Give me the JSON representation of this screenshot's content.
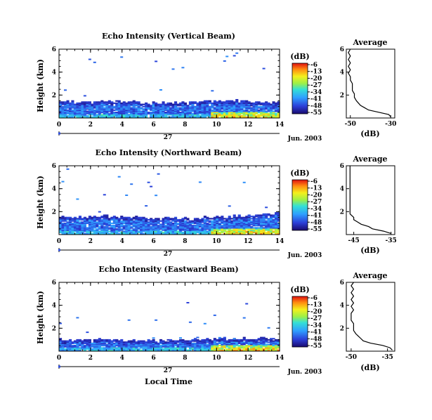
{
  "figure": {
    "date_label": "Jun. 2003",
    "day_label": "27",
    "xlabel": "Local Time"
  },
  "colorbar": {
    "unit": "(dB)",
    "ticks": [
      "-6",
      "-13",
      "-20",
      "-27",
      "-34",
      "-41",
      "-48",
      "-55"
    ]
  },
  "chart_data": [
    {
      "type": "heatmap",
      "title": "Echo Intensity (Vertical Beam)",
      "ylabel": "Height (km)",
      "xlim": [
        0,
        14
      ],
      "ylim": [
        0,
        6
      ],
      "xticks": [
        "0",
        "2",
        "4",
        "6",
        "8",
        "10",
        "12",
        "14"
      ],
      "yticks": [
        "2",
        "4",
        "6"
      ],
      "boundary_layer_top_km": [
        1.4,
        1.4,
        1.4,
        1.4,
        1.4,
        1.3,
        1.3,
        1.3,
        1.35,
        1.45,
        1.45,
        1.45,
        1.4,
        1.35,
        1.35
      ],
      "strong_echo_time_range": [
        9.5,
        14
      ],
      "zlim_db": [
        -55,
        -6
      ],
      "profile": {
        "title": "Average",
        "xlabel": "(dB)",
        "xticks": [
          "-50",
          "-30"
        ],
        "xlim": [
          -52,
          -28
        ],
        "ylim": [
          0,
          6
        ],
        "heights": [
          0.1,
          0.3,
          0.5,
          0.7,
          0.9,
          1.1,
          1.3,
          1.5,
          1.8,
          2.1,
          2.4,
          2.7,
          3.0,
          3.3,
          3.6,
          3.9,
          4.2,
          4.5,
          4.8,
          5.1,
          5.4,
          5.7,
          6.0
        ],
        "values": [
          -30,
          -31,
          -36,
          -41,
          -43,
          -45,
          -46,
          -47,
          -48,
          -48,
          -49,
          -49,
          -49,
          -50,
          -50,
          -51,
          -50,
          -51,
          -50,
          -51,
          -50,
          -51,
          -50
        ]
      }
    },
    {
      "type": "heatmap",
      "title": "Echo Intensity (Northward Beam)",
      "ylabel": "Height (km)",
      "xlim": [
        0,
        14
      ],
      "ylim": [
        0,
        6
      ],
      "xticks": [
        "0",
        "2",
        "4",
        "6",
        "8",
        "10",
        "12",
        "14"
      ],
      "yticks": [
        "2",
        "4",
        "6"
      ],
      "boundary_layer_top_km": [
        1.5,
        1.5,
        1.6,
        1.5,
        1.5,
        1.4,
        1.4,
        1.4,
        1.4,
        1.5,
        1.5,
        1.6,
        1.7,
        1.8,
        1.9
      ],
      "strong_echo_time_range": [
        9.5,
        14
      ],
      "zlim_db": [
        -55,
        -6
      ],
      "profile": {
        "title": "Average",
        "xlabel": "(dB)",
        "xticks": [
          "-45",
          "-35"
        ],
        "xlim": [
          -47,
          -34
        ],
        "ylim": [
          0,
          6
        ],
        "heights": [
          0.1,
          0.3,
          0.5,
          0.7,
          0.9,
          1.1,
          1.3,
          1.5,
          1.8,
          2.1,
          2.4,
          2.7,
          3.0,
          3.3,
          3.6,
          3.9,
          4.2,
          4.5,
          4.8,
          5.1,
          5.4,
          5.7,
          6.0
        ],
        "values": [
          -35,
          -37,
          -40,
          -41,
          -43,
          -44,
          -45,
          -45,
          -46,
          -46,
          -46,
          -46,
          -46,
          -46,
          -46,
          -46,
          -46,
          -46,
          -46,
          -46,
          -46,
          -46,
          -46
        ]
      }
    },
    {
      "type": "heatmap",
      "title": "Echo Intensity (Eastward Beam)",
      "ylabel": "Height (km)",
      "xlim": [
        0,
        14
      ],
      "ylim": [
        0,
        6
      ],
      "xticks": [
        "0",
        "2",
        "4",
        "6",
        "8",
        "10",
        "12",
        "14"
      ],
      "yticks": [
        "2",
        "4",
        "6"
      ],
      "boundary_layer_top_km": [
        1.0,
        1.0,
        1.0,
        1.0,
        0.9,
        0.9,
        0.9,
        0.9,
        0.95,
        1.0,
        1.05,
        1.1,
        1.1,
        1.1,
        1.1
      ],
      "strong_echo_time_range": [
        9.5,
        14
      ],
      "zlim_db": [
        -55,
        -6
      ],
      "profile": {
        "title": "Average",
        "xlabel": "(dB)",
        "xticks": [
          "-50",
          "-35"
        ],
        "xlim": [
          -52,
          -32
        ],
        "ylim": [
          0,
          6
        ],
        "heights": [
          0.1,
          0.3,
          0.5,
          0.7,
          0.9,
          1.1,
          1.3,
          1.5,
          1.8,
          2.1,
          2.4,
          2.7,
          3.0,
          3.3,
          3.6,
          3.9,
          4.2,
          4.5,
          4.8,
          5.1,
          5.4,
          5.7,
          6.0
        ],
        "values": [
          -33,
          -34,
          -37,
          -42,
          -45,
          -46,
          -47,
          -48,
          -49,
          -49,
          -49,
          -50,
          -50,
          -50,
          -49,
          -50,
          -49,
          -50,
          -49,
          -50,
          -49,
          -50,
          -49
        ]
      }
    }
  ]
}
